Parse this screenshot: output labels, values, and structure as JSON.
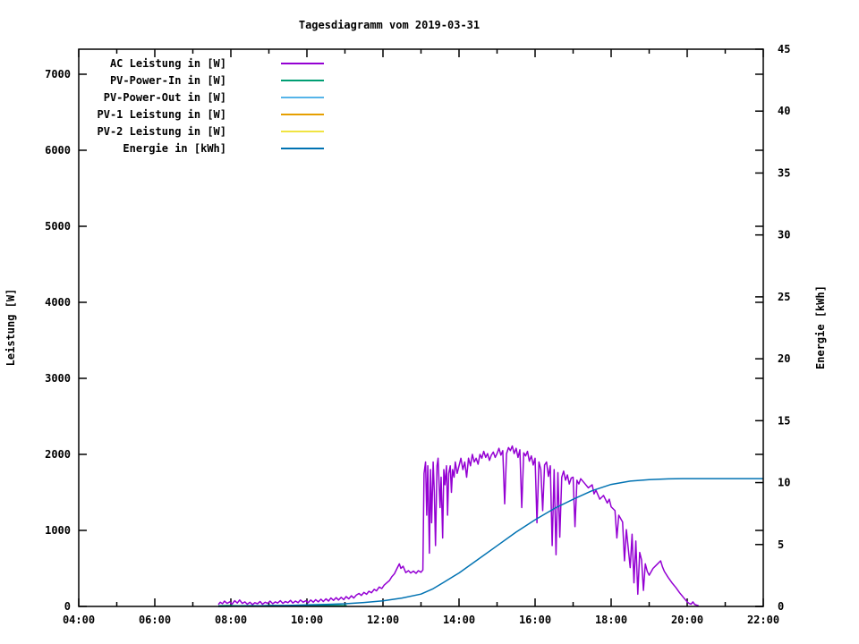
{
  "title": "Tagesdiagramm vom 2019-03-31",
  "colors": {
    "ac": "#9400D3",
    "pv_in": "#009E73",
    "pv_out": "#56B4E9",
    "pv1": "#E69F00",
    "pv2": "#F0E442",
    "energie": "#0072B2",
    "axis": "#000000",
    "background": "#FFFFFF"
  },
  "chart_data": {
    "type": "line",
    "title": "Tagesdiagramm vom 2019-03-31",
    "y1_label": "Leistung [W]",
    "y2_label": "Energie [kWh]",
    "x_range": [
      4,
      22
    ],
    "y1_range": [
      0,
      7329
    ],
    "y2_range": [
      0,
      45
    ],
    "grid": false,
    "legend_position": "top-left-inside",
    "x_ticks": {
      "major": [
        {
          "t": 4,
          "label": "04:00"
        },
        {
          "t": 6,
          "label": "06:00"
        },
        {
          "t": 8,
          "label": "08:00"
        },
        {
          "t": 10,
          "label": "10:00"
        },
        {
          "t": 12,
          "label": "12:00"
        },
        {
          "t": 14,
          "label": "14:00"
        },
        {
          "t": 16,
          "label": "16:00"
        },
        {
          "t": 18,
          "label": "18:00"
        },
        {
          "t": 20,
          "label": "20:00"
        },
        {
          "t": 22,
          "label": "22:00"
        }
      ],
      "minor": [
        5,
        7,
        9,
        11,
        13,
        15,
        17,
        19,
        21
      ]
    },
    "y1_ticks": [
      {
        "v": 0,
        "label": "0"
      },
      {
        "v": 1000,
        "label": "1000"
      },
      {
        "v": 2000,
        "label": "2000"
      },
      {
        "v": 3000,
        "label": "3000"
      },
      {
        "v": 4000,
        "label": "4000"
      },
      {
        "v": 5000,
        "label": "5000"
      },
      {
        "v": 6000,
        "label": "6000"
      },
      {
        "v": 7000,
        "label": "7000"
      }
    ],
    "y2_ticks": [
      {
        "v": 0,
        "label": "0"
      },
      {
        "v": 5,
        "label": "5"
      },
      {
        "v": 10,
        "label": "10"
      },
      {
        "v": 15,
        "label": "15"
      },
      {
        "v": 20,
        "label": "20"
      },
      {
        "v": 25,
        "label": "25"
      },
      {
        "v": 30,
        "label": "30"
      },
      {
        "v": 35,
        "label": "35"
      },
      {
        "v": 40,
        "label": "40"
      },
      {
        "v": 45,
        "label": "45"
      }
    ],
    "series": [
      {
        "name": "AC Leistung in [W]",
        "color": "#9400D3",
        "axis": "y1",
        "points": [
          [
            7.67,
            25
          ],
          [
            7.72,
            55
          ],
          [
            7.78,
            35
          ],
          [
            7.83,
            70
          ],
          [
            7.9,
            40
          ],
          [
            7.97,
            60
          ],
          [
            8.03,
            30
          ],
          [
            8.1,
            75
          ],
          [
            8.17,
            45
          ],
          [
            8.23,
            85
          ],
          [
            8.3,
            40
          ],
          [
            8.37,
            60
          ],
          [
            8.43,
            30
          ],
          [
            8.5,
            55
          ],
          [
            8.57,
            25
          ],
          [
            8.63,
            50
          ],
          [
            8.7,
            35
          ],
          [
            8.77,
            65
          ],
          [
            8.83,
            30
          ],
          [
            8.9,
            55
          ],
          [
            8.97,
            40
          ],
          [
            9.03,
            70
          ],
          [
            9.1,
            35
          ],
          [
            9.17,
            60
          ],
          [
            9.23,
            45
          ],
          [
            9.3,
            75
          ],
          [
            9.37,
            40
          ],
          [
            9.43,
            65
          ],
          [
            9.5,
            50
          ],
          [
            9.57,
            80
          ],
          [
            9.63,
            45
          ],
          [
            9.7,
            70
          ],
          [
            9.77,
            50
          ],
          [
            9.83,
            85
          ],
          [
            9.9,
            55
          ],
          [
            9.97,
            75
          ],
          [
            10.03,
            50
          ],
          [
            10.1,
            85
          ],
          [
            10.17,
            55
          ],
          [
            10.23,
            90
          ],
          [
            10.3,
            60
          ],
          [
            10.37,
            95
          ],
          [
            10.43,
            65
          ],
          [
            10.5,
            100
          ],
          [
            10.57,
            70
          ],
          [
            10.63,
            110
          ],
          [
            10.7,
            80
          ],
          [
            10.77,
            115
          ],
          [
            10.83,
            85
          ],
          [
            10.9,
            120
          ],
          [
            10.97,
            90
          ],
          [
            11.03,
            130
          ],
          [
            11.1,
            100
          ],
          [
            11.17,
            140
          ],
          [
            11.23,
            110
          ],
          [
            11.3,
            150
          ],
          [
            11.37,
            170
          ],
          [
            11.43,
            145
          ],
          [
            11.5,
            185
          ],
          [
            11.57,
            160
          ],
          [
            11.63,
            200
          ],
          [
            11.7,
            180
          ],
          [
            11.77,
            225
          ],
          [
            11.83,
            205
          ],
          [
            11.9,
            255
          ],
          [
            11.97,
            235
          ],
          [
            12.03,
            280
          ],
          [
            12.1,
            310
          ],
          [
            12.17,
            340
          ],
          [
            12.23,
            390
          ],
          [
            12.3,
            430
          ],
          [
            12.37,
            500
          ],
          [
            12.43,
            560
          ],
          [
            12.47,
            500
          ],
          [
            12.53,
            530
          ],
          [
            12.6,
            445
          ],
          [
            12.67,
            470
          ],
          [
            12.73,
            440
          ],
          [
            12.8,
            465
          ],
          [
            12.87,
            435
          ],
          [
            12.93,
            470
          ],
          [
            13.0,
            450
          ],
          [
            13.05,
            480
          ],
          [
            13.08,
            1750
          ],
          [
            13.12,
            1900
          ],
          [
            13.15,
            1200
          ],
          [
            13.18,
            1850
          ],
          [
            13.22,
            700
          ],
          [
            13.25,
            1800
          ],
          [
            13.28,
            1100
          ],
          [
            13.32,
            1900
          ],
          [
            13.35,
            1500
          ],
          [
            13.38,
            800
          ],
          [
            13.42,
            1850
          ],
          [
            13.45,
            1950
          ],
          [
            13.5,
            1300
          ],
          [
            13.53,
            1700
          ],
          [
            13.57,
            900
          ],
          [
            13.6,
            1800
          ],
          [
            13.63,
            1600
          ],
          [
            13.67,
            1850
          ],
          [
            13.7,
            1200
          ],
          [
            13.73,
            1750
          ],
          [
            13.77,
            1850
          ],
          [
            13.8,
            1500
          ],
          [
            13.83,
            1800
          ],
          [
            13.87,
            1700
          ],
          [
            13.9,
            1900
          ],
          [
            13.95,
            1750
          ],
          [
            14.0,
            1850
          ],
          [
            14.05,
            1950
          ],
          [
            14.1,
            1800
          ],
          [
            14.15,
            1900
          ],
          [
            14.2,
            1700
          ],
          [
            14.25,
            1950
          ],
          [
            14.3,
            1850
          ],
          [
            14.35,
            2000
          ],
          [
            14.4,
            1900
          ],
          [
            14.45,
            1950
          ],
          [
            14.5,
            1870
          ],
          [
            14.55,
            2000
          ],
          [
            14.6,
            1950
          ],
          [
            14.65,
            2040
          ],
          [
            14.7,
            1960
          ],
          [
            14.75,
            2010
          ],
          [
            14.8,
            1920
          ],
          [
            14.85,
            1990
          ],
          [
            14.9,
            2030
          ],
          [
            14.95,
            1960
          ],
          [
            15.0,
            2010
          ],
          [
            15.05,
            2080
          ],
          [
            15.1,
            1990
          ],
          [
            15.15,
            2050
          ],
          [
            15.2,
            1350
          ],
          [
            15.25,
            2010
          ],
          [
            15.3,
            2090
          ],
          [
            15.35,
            2050
          ],
          [
            15.4,
            2110
          ],
          [
            15.45,
            2010
          ],
          [
            15.5,
            2080
          ],
          [
            15.55,
            1960
          ],
          [
            15.6,
            2060
          ],
          [
            15.65,
            1300
          ],
          [
            15.7,
            2020
          ],
          [
            15.75,
            1980
          ],
          [
            15.8,
            2040
          ],
          [
            15.85,
            1910
          ],
          [
            15.9,
            1980
          ],
          [
            15.95,
            1860
          ],
          [
            16.0,
            1950
          ],
          [
            16.05,
            1100
          ],
          [
            16.1,
            1900
          ],
          [
            16.15,
            1800
          ],
          [
            16.2,
            1260
          ],
          [
            16.25,
            1860
          ],
          [
            16.3,
            1900
          ],
          [
            16.35,
            1710
          ],
          [
            16.4,
            1850
          ],
          [
            16.45,
            800
          ],
          [
            16.5,
            1800
          ],
          [
            16.55,
            680
          ],
          [
            16.6,
            1760
          ],
          [
            16.65,
            910
          ],
          [
            16.7,
            1700
          ],
          [
            16.75,
            1780
          ],
          [
            16.8,
            1660
          ],
          [
            16.85,
            1730
          ],
          [
            16.9,
            1610
          ],
          [
            16.95,
            1690
          ],
          [
            17.0,
            1700
          ],
          [
            17.05,
            1050
          ],
          [
            17.1,
            1660
          ],
          [
            17.15,
            1610
          ],
          [
            17.2,
            1680
          ],
          [
            17.3,
            1620
          ],
          [
            17.4,
            1560
          ],
          [
            17.5,
            1600
          ],
          [
            17.55,
            1480
          ],
          [
            17.6,
            1530
          ],
          [
            17.7,
            1410
          ],
          [
            17.8,
            1460
          ],
          [
            17.9,
            1360
          ],
          [
            17.95,
            1410
          ],
          [
            18.0,
            1310
          ],
          [
            18.1,
            1260
          ],
          [
            18.15,
            900
          ],
          [
            18.2,
            1200
          ],
          [
            18.3,
            1110
          ],
          [
            18.35,
            600
          ],
          [
            18.4,
            1010
          ],
          [
            18.5,
            510
          ],
          [
            18.55,
            950
          ],
          [
            18.6,
            310
          ],
          [
            18.65,
            860
          ],
          [
            18.7,
            160
          ],
          [
            18.75,
            710
          ],
          [
            18.8,
            610
          ],
          [
            18.85,
            210
          ],
          [
            18.9,
            560
          ],
          [
            18.95,
            460
          ],
          [
            19.0,
            410
          ],
          [
            19.1,
            500
          ],
          [
            19.2,
            550
          ],
          [
            19.3,
            600
          ],
          [
            19.35,
            520
          ],
          [
            19.4,
            460
          ],
          [
            19.5,
            380
          ],
          [
            19.6,
            310
          ],
          [
            19.7,
            250
          ],
          [
            19.8,
            180
          ],
          [
            19.9,
            120
          ],
          [
            20.0,
            60
          ],
          [
            20.05,
            40
          ],
          [
            20.1,
            30
          ],
          [
            20.15,
            60
          ],
          [
            20.2,
            25
          ],
          [
            20.3,
            8
          ]
        ]
      },
      {
        "name": "PV-Power-In in [W]",
        "color": "#009E73",
        "axis": "y1",
        "points": [
          [
            7.67,
            8
          ],
          [
            7.9,
            12
          ],
          [
            8.2,
            9
          ],
          [
            8.5,
            11
          ],
          [
            8.8,
            8
          ],
          [
            9.1,
            13
          ],
          [
            9.4,
            10
          ],
          [
            9.7,
            12
          ],
          [
            10.0,
            14
          ],
          [
            10.3,
            11
          ],
          [
            10.6,
            13
          ],
          [
            10.9,
            12
          ],
          [
            11.05,
            10
          ]
        ]
      },
      {
        "name": "PV-Power-Out in [W]",
        "color": "#56B4E9",
        "axis": "y1",
        "points": []
      },
      {
        "name": "PV-1 Leistung in [W]",
        "color": "#E69F00",
        "axis": "y1",
        "points": []
      },
      {
        "name": "PV-2 Leistung in [W]",
        "color": "#F0E442",
        "axis": "y1",
        "points": []
      },
      {
        "name": "Energie in [kWh]",
        "color": "#0072B2",
        "axis": "y2",
        "points": [
          [
            7.67,
            0
          ],
          [
            8.5,
            0.04
          ],
          [
            9.5,
            0.08
          ],
          [
            10.0,
            0.12
          ],
          [
            10.5,
            0.16
          ],
          [
            11.0,
            0.22
          ],
          [
            11.5,
            0.32
          ],
          [
            12.0,
            0.45
          ],
          [
            12.5,
            0.68
          ],
          [
            13.0,
            1.0
          ],
          [
            13.3,
            1.4
          ],
          [
            13.6,
            1.95
          ],
          [
            14.0,
            2.7
          ],
          [
            14.5,
            3.8
          ],
          [
            15.0,
            4.9
          ],
          [
            15.5,
            6.0
          ],
          [
            16.0,
            7.0
          ],
          [
            16.5,
            7.9
          ],
          [
            17.0,
            8.65
          ],
          [
            17.5,
            9.35
          ],
          [
            18.0,
            9.85
          ],
          [
            18.5,
            10.12
          ],
          [
            19.0,
            10.24
          ],
          [
            19.5,
            10.3
          ],
          [
            20.0,
            10.32
          ],
          [
            21.0,
            10.32
          ],
          [
            22.0,
            10.32
          ]
        ]
      }
    ]
  }
}
